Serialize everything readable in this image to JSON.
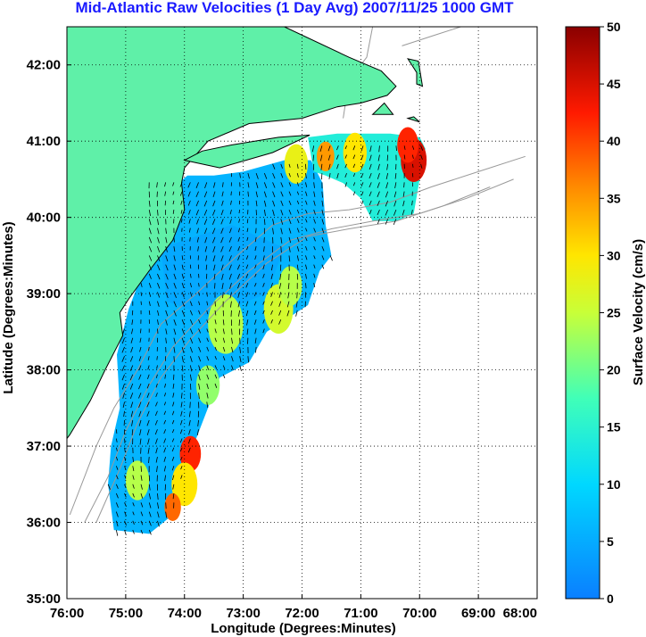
{
  "chart_data": {
    "type": "heatmap",
    "title": "Mid-Atlantic Raw Velocities (1 Day Avg) 2007/11/25 1000 GMT",
    "xlabel": "Longitude (Degrees:Minutes)",
    "ylabel": "Latitude (Degrees:Minutes)",
    "colorbar_label": "Surface Velocity (cm/s)",
    "xlim": [
      -76,
      -68
    ],
    "ylim": [
      35,
      42.5
    ],
    "x_ticks": [
      {
        "value": -76,
        "label": "76:00"
      },
      {
        "value": -75,
        "label": "75:00"
      },
      {
        "value": -74,
        "label": "74:00"
      },
      {
        "value": -73,
        "label": "73:00"
      },
      {
        "value": -72,
        "label": "72:00"
      },
      {
        "value": -71,
        "label": "71:00"
      },
      {
        "value": -70,
        "label": "70:00"
      },
      {
        "value": -69,
        "label": "69:00"
      },
      {
        "value": -68,
        "label": "68:00"
      }
    ],
    "y_ticks": [
      {
        "value": 35,
        "label": "35:00"
      },
      {
        "value": 36,
        "label": "36:00"
      },
      {
        "value": 37,
        "label": "37:00"
      },
      {
        "value": 38,
        "label": "38:00"
      },
      {
        "value": 39,
        "label": "39:00"
      },
      {
        "value": 40,
        "label": "40:00"
      },
      {
        "value": 41,
        "label": "41:00"
      },
      {
        "value": 42,
        "label": "42:00"
      }
    ],
    "colorbar": {
      "range": [
        0,
        50
      ],
      "ticks": [
        {
          "value": 0,
          "label": "0"
        },
        {
          "value": 5,
          "label": "5"
        },
        {
          "value": 10,
          "label": "10"
        },
        {
          "value": 15,
          "label": "15"
        },
        {
          "value": 20,
          "label": "20"
        },
        {
          "value": 25,
          "label": "25"
        },
        {
          "value": 30,
          "label": "30"
        },
        {
          "value": 35,
          "label": "35"
        },
        {
          "value": 40,
          "label": "40"
        },
        {
          "value": 45,
          "label": "45"
        },
        {
          "value": 50,
          "label": "50"
        }
      ],
      "colormap": "jet"
    },
    "grid": true,
    "colors": {
      "land": "#5ff0a8",
      "title": "#1a1aff",
      "isobath": "#999999"
    },
    "land": [
      [
        [
          -76,
          42.5
        ],
        [
          -72.3,
          42.5
        ],
        [
          -71.2,
          42.1
        ],
        [
          -70.65,
          41.92
        ],
        [
          -70.4,
          41.72
        ],
        [
          -70.55,
          41.6
        ],
        [
          -71.0,
          41.5
        ],
        [
          -71.4,
          41.45
        ],
        [
          -72.0,
          41.3
        ],
        [
          -72.9,
          41.23
        ],
        [
          -73.6,
          41.0
        ],
        [
          -74.0,
          40.65
        ],
        [
          -74.05,
          40.45
        ],
        [
          -74.0,
          40.1
        ],
        [
          -74.2,
          39.7
        ],
        [
          -74.6,
          39.3
        ],
        [
          -74.95,
          38.93
        ],
        [
          -75.1,
          38.75
        ],
        [
          -75.05,
          38.45
        ],
        [
          -75.35,
          38.0
        ],
        [
          -75.6,
          37.6
        ],
        [
          -75.95,
          37.15
        ],
        [
          -76,
          37.1
        ]
      ],
      [
        [
          -74.0,
          40.75
        ],
        [
          -73.4,
          40.65
        ],
        [
          -72.5,
          40.85
        ],
        [
          -71.87,
          41.08
        ],
        [
          -72.4,
          41.05
        ],
        [
          -73.2,
          40.95
        ],
        [
          -73.7,
          40.87
        ]
      ],
      [
        [
          -70.05,
          41.75
        ],
        [
          -69.95,
          41.72
        ],
        [
          -70.02,
          42.05
        ],
        [
          -70.2,
          42.08
        ],
        [
          -70.05,
          41.9
        ]
      ],
      [
        [
          -70.8,
          41.35
        ],
        [
          -70.45,
          41.35
        ],
        [
          -70.6,
          41.5
        ]
      ],
      [
        [
          -70.2,
          41.3
        ],
        [
          -70.0,
          41.25
        ],
        [
          -70.1,
          41.32
        ]
      ]
    ],
    "isobaths": [
      [
        [
          -75.95,
          36.1
        ],
        [
          -75.7,
          36.6
        ],
        [
          -75.5,
          37.0
        ],
        [
          -75.2,
          37.5
        ],
        [
          -74.8,
          38.0
        ],
        [
          -74.4,
          38.6
        ],
        [
          -73.8,
          39.0
        ],
        [
          -73.1,
          39.5
        ],
        [
          -72.5,
          39.9
        ],
        [
          -71.9,
          40.05
        ],
        [
          -71.2,
          40.1
        ],
        [
          -70.5,
          40.2
        ],
        [
          -69.8,
          40.4
        ],
        [
          -69.0,
          40.6
        ],
        [
          -68.2,
          40.8
        ]
      ],
      [
        [
          -75.7,
          36.0
        ],
        [
          -75.3,
          36.6
        ],
        [
          -75.0,
          37.2
        ],
        [
          -74.6,
          37.8
        ],
        [
          -74.2,
          38.3
        ],
        [
          -73.6,
          38.8
        ],
        [
          -72.9,
          39.3
        ],
        [
          -72.2,
          39.7
        ],
        [
          -71.5,
          39.85
        ],
        [
          -70.8,
          39.95
        ],
        [
          -70.0,
          40.05
        ],
        [
          -69.2,
          40.25
        ],
        [
          -68.4,
          40.5
        ]
      ],
      [
        [
          -75.5,
          36.0
        ],
        [
          -75.1,
          36.7
        ],
        [
          -74.8,
          37.3
        ],
        [
          -74.4,
          37.9
        ],
        [
          -73.9,
          38.4
        ],
        [
          -73.3,
          38.9
        ],
        [
          -72.6,
          39.4
        ],
        [
          -71.9,
          39.75
        ],
        [
          -71.2,
          39.85
        ],
        [
          -70.4,
          39.95
        ],
        [
          -69.6,
          40.15
        ],
        [
          -68.8,
          40.4
        ]
      ],
      [
        [
          -71.3,
          41.3
        ],
        [
          -71.2,
          41.8
        ],
        [
          -70.9,
          42.1
        ],
        [
          -70.8,
          42.5
        ]
      ],
      [
        [
          -70.3,
          42.25
        ],
        [
          -69.7,
          42.4
        ],
        [
          -69.3,
          42.5
        ]
      ]
    ],
    "coverage": [
      [
        -74.6,
        40.5
      ],
      [
        -74.4,
        40.5
      ],
      [
        -74.1,
        40.45
      ],
      [
        -73.95,
        40.55
      ],
      [
        -73.5,
        40.55
      ],
      [
        -73.0,
        40.6
      ],
      [
        -72.3,
        40.75
      ],
      [
        -71.85,
        40.75
      ],
      [
        -71.65,
        40.45
      ],
      [
        -71.6,
        39.9
      ],
      [
        -71.5,
        39.5
      ],
      [
        -71.7,
        39.3
      ],
      [
        -71.9,
        38.85
      ],
      [
        -72.6,
        38.5
      ],
      [
        -72.9,
        38.1
      ],
      [
        -73.4,
        37.9
      ],
      [
        -73.7,
        37.3
      ],
      [
        -73.9,
        36.9
      ],
      [
        -74.0,
        36.6
      ],
      [
        -74.2,
        36.1
      ],
      [
        -74.6,
        35.85
      ],
      [
        -75.2,
        35.9
      ],
      [
        -75.3,
        36.5
      ],
      [
        -75.25,
        37.0
      ],
      [
        -75.1,
        37.5
      ],
      [
        -75.15,
        38.2
      ],
      [
        -74.95,
        38.8
      ],
      [
        -74.7,
        39.3
      ],
      [
        -74.6,
        39.9
      ]
    ],
    "coverage_ne": [
      [
        -71.9,
        41.05
      ],
      [
        -71.4,
        41.1
      ],
      [
        -70.5,
        41.1
      ],
      [
        -70.0,
        41.05
      ],
      [
        -69.9,
        40.9
      ],
      [
        -70.0,
        40.5
      ],
      [
        -70.1,
        40.05
      ],
      [
        -70.4,
        39.95
      ],
      [
        -70.8,
        39.95
      ],
      [
        -71.0,
        40.25
      ],
      [
        -71.3,
        40.45
      ],
      [
        -71.6,
        40.55
      ],
      [
        -71.8,
        40.6
      ]
    ],
    "hotspots": [
      {
        "lon": -70.1,
        "lat": 40.75,
        "value": 45,
        "radius": 0.22
      },
      {
        "lon": -70.2,
        "lat": 40.95,
        "value": 42,
        "radius": 0.18
      },
      {
        "lon": -71.1,
        "lat": 40.85,
        "value": 30,
        "radius": 0.2
      },
      {
        "lon": -71.6,
        "lat": 40.8,
        "value": 35,
        "radius": 0.15
      },
      {
        "lon": -72.1,
        "lat": 40.7,
        "value": 28,
        "radius": 0.2
      },
      {
        "lon": -73.9,
        "lat": 36.9,
        "value": 42,
        "radius": 0.18
      },
      {
        "lon": -74.0,
        "lat": 36.5,
        "value": 30,
        "radius": 0.22
      },
      {
        "lon": -74.2,
        "lat": 36.2,
        "value": 38,
        "radius": 0.14
      },
      {
        "lon": -74.8,
        "lat": 36.55,
        "value": 24,
        "radius": 0.2
      },
      {
        "lon": -73.3,
        "lat": 38.6,
        "value": 24,
        "radius": 0.3
      },
      {
        "lon": -72.4,
        "lat": 38.8,
        "value": 26,
        "radius": 0.25
      },
      {
        "lon": -72.2,
        "lat": 39.1,
        "value": 24,
        "radius": 0.2
      },
      {
        "lon": -73.6,
        "lat": 37.8,
        "value": 22,
        "radius": 0.2
      }
    ]
  }
}
